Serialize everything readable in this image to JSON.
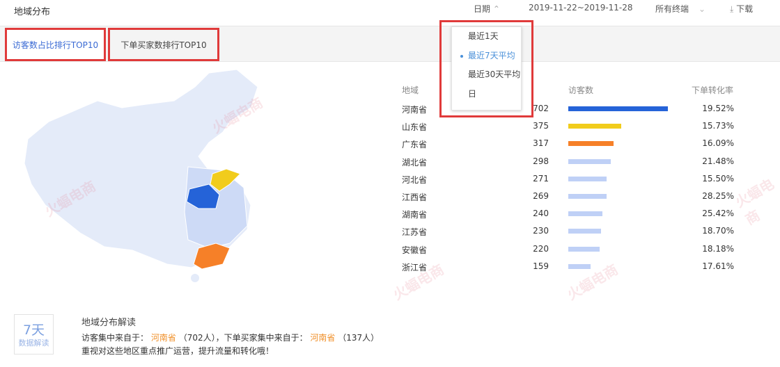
{
  "title": "地域分布",
  "header": {
    "date_label": "日期",
    "date_range": "2019-11-22~2019-11-28",
    "terminal": "所有终端",
    "download": "下载"
  },
  "tabs": [
    {
      "label": "访客数占比排行TOP10",
      "active": true
    },
    {
      "label": "下单买家数排行TOP10",
      "active": false
    }
  ],
  "date_dropdown": {
    "options": [
      "最近1天",
      "最近7天平均",
      "最近30天平均",
      "日"
    ],
    "selected": "最近7天平均"
  },
  "table": {
    "headers": [
      "地域",
      "访客数",
      "下单转化率"
    ],
    "rows": [
      {
        "region": "河南省",
        "visitors": 702,
        "rate": "19.52%",
        "color": "#2563d8"
      },
      {
        "region": "山东省",
        "visitors": 375,
        "rate": "15.73%",
        "color": "#f1cc1c"
      },
      {
        "region": "广东省",
        "visitors": 317,
        "rate": "16.09%",
        "color": "#f68028"
      },
      {
        "region": "湖北省",
        "visitors": 298,
        "rate": "21.48%",
        "color": "#bfd0f6"
      },
      {
        "region": "河北省",
        "visitors": 271,
        "rate": "15.50%",
        "color": "#bfd0f6"
      },
      {
        "region": "江西省",
        "visitors": 269,
        "rate": "28.25%",
        "color": "#bfd0f6"
      },
      {
        "region": "湖南省",
        "visitors": 240,
        "rate": "25.42%",
        "color": "#bfd0f6"
      },
      {
        "region": "江苏省",
        "visitors": 230,
        "rate": "18.70%",
        "color": "#bfd0f6"
      },
      {
        "region": "安徽省",
        "visitors": 220,
        "rate": "18.18%",
        "color": "#bfd0f6"
      },
      {
        "region": "浙江省",
        "visitors": 159,
        "rate": "17.61%",
        "color": "#bfd0f6"
      }
    ]
  },
  "summary": {
    "badge_big": "7天",
    "badge_small": "数据解读",
    "heading": "地域分布解读",
    "line1_a": "访客集中来自于：",
    "line1_region": "河南省",
    "line1_b": "（702人），下单买家集中来自于：",
    "line1_region2": "河南省",
    "line1_c": "（137人）",
    "line2": "重视对这些地区重点推广运营，提升流量和转化哦！"
  },
  "watermark": "火蝠电商"
}
